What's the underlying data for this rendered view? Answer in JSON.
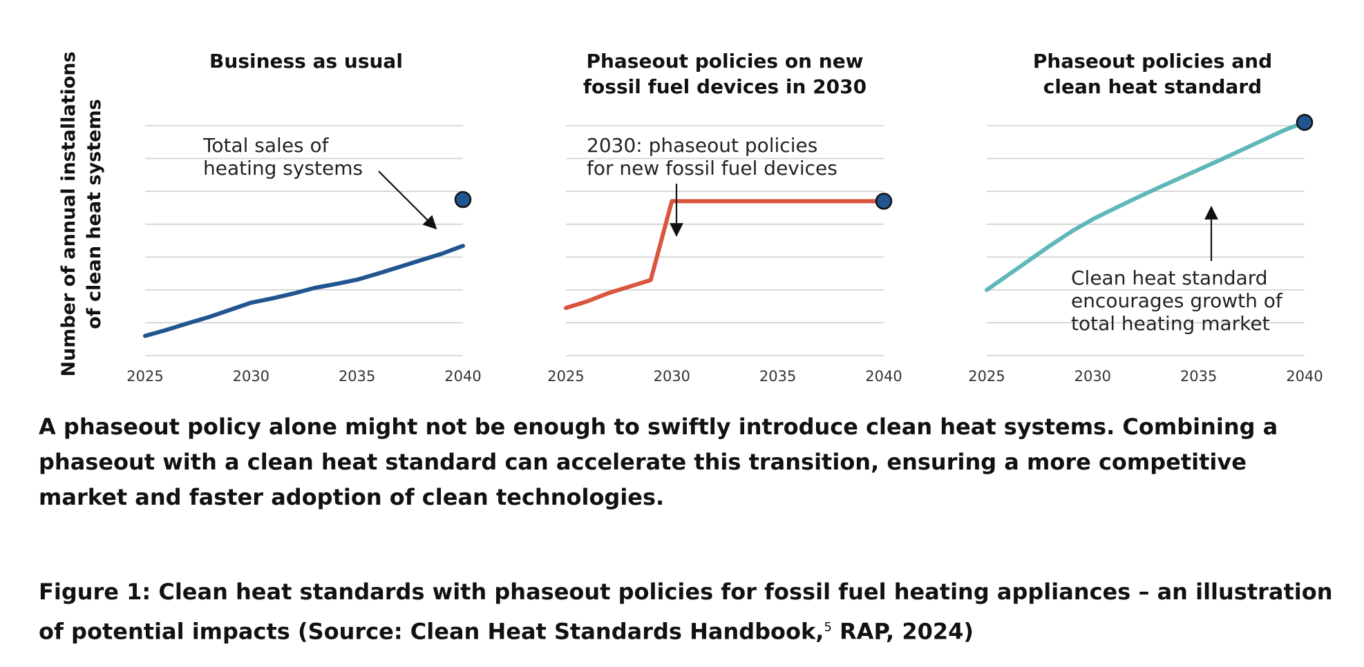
{
  "shared_y_label": [
    "Number of annual installations",
    "of clean heat systems"
  ],
  "colors": {
    "bau": "#21558f",
    "phaseout": "#d9553f",
    "standard": "#5fb7b9",
    "marker": "#21558f"
  },
  "chart_data": [
    {
      "type": "line",
      "title": [
        "Business as usual"
      ],
      "x": [
        2025,
        2026,
        2027,
        2028,
        2029,
        2030,
        2031,
        2032,
        2033,
        2034,
        2035,
        2036,
        2037,
        2038,
        2039,
        2040
      ],
      "series": [
        {
          "values": [
            0.6,
            0.78,
            0.98,
            1.17,
            1.39,
            1.61,
            1.74,
            1.89,
            2.06,
            2.18,
            2.31,
            2.5,
            2.7,
            2.9,
            3.1,
            3.34
          ]
        }
      ],
      "marker": {
        "x": 2040,
        "y": 4.75,
        "label": "Total sales of heating systems"
      },
      "annotation": [
        "Total sales of",
        "heating systems"
      ],
      "xticks": [
        2025,
        2030,
        2035,
        2040
      ],
      "xlim": [
        2025,
        2040
      ],
      "ylim": [
        0,
        7
      ],
      "grid": true
    },
    {
      "type": "line",
      "title": [
        "Phaseout policies on new",
        "fossil fuel devices in 2030"
      ],
      "x": [
        2025,
        2026,
        2027,
        2028,
        2029,
        2030,
        2031,
        2032,
        2033,
        2034,
        2035,
        2036,
        2037,
        2038,
        2039,
        2040
      ],
      "series": [
        {
          "values": [
            1.45,
            1.65,
            1.9,
            2.1,
            2.3,
            4.7,
            4.7,
            4.7,
            4.7,
            4.7,
            4.7,
            4.7,
            4.7,
            4.7,
            4.7,
            4.7
          ]
        }
      ],
      "marker": {
        "x": 2040,
        "y": 4.7
      },
      "annotation": [
        "2030: phaseout policies",
        "for new fossil fuel devices"
      ],
      "xticks": [
        2025,
        2030,
        2035,
        2040
      ],
      "xlim": [
        2025,
        2040
      ],
      "ylim": [
        0,
        7
      ],
      "grid": true
    },
    {
      "type": "line",
      "title": [
        "Phaseout policies and",
        "clean heat standard"
      ],
      "x": [
        2025,
        2026,
        2027,
        2028,
        2029,
        2030,
        2031,
        2032,
        2033,
        2034,
        2035,
        2036,
        2037,
        2038,
        2039,
        2040
      ],
      "series": [
        {
          "values": [
            2.0,
            2.45,
            2.9,
            3.35,
            3.78,
            4.15,
            4.47,
            4.78,
            5.08,
            5.37,
            5.66,
            5.95,
            6.25,
            6.55,
            6.85,
            7.1
          ]
        }
      ],
      "marker": {
        "x": 2040,
        "y": 7.1
      },
      "annotation": [
        "Clean heat standard",
        "encourages growth of",
        "total heating market"
      ],
      "xticks": [
        2025,
        2030,
        2035,
        2040
      ],
      "xlim": [
        2025,
        2040
      ],
      "ylim": [
        0,
        7
      ],
      "grid": true
    }
  ],
  "caption": "A phaseout policy alone might not be enough to swiftly introduce clean heat systems. Combining a phaseout with a clean heat standard can accelerate this transition, ensuring a more competitive market and faster adoption of clean technologies.",
  "figure_caption": {
    "lead": "Figure 1:",
    "text": " Clean heat standards with phaseout policies for fossil fuel heating appliances – an illustration of potential impacts (Source: Clean Heat Standards Handbook,",
    "superscript": "5",
    "tail": " RAP, 2024)"
  }
}
